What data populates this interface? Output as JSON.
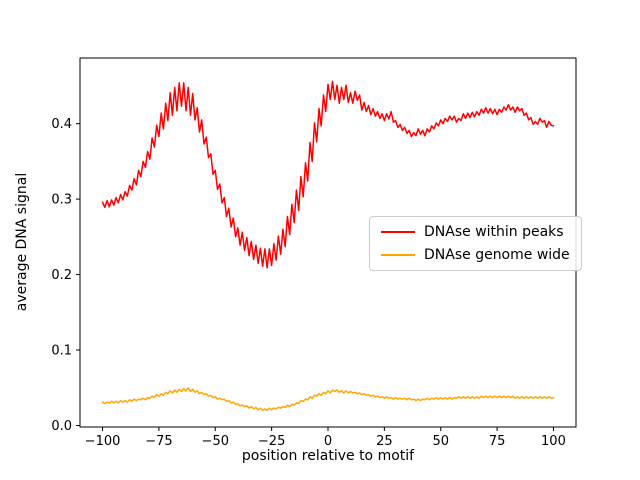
{
  "chart_data": {
    "type": "line",
    "title": "",
    "xlabel": "position relative to motif",
    "ylabel": "average DNA signal",
    "xlim": [
      -110,
      110
    ],
    "ylim": [
      -0.002,
      0.487
    ],
    "grid": false,
    "background": "#ffffff",
    "axes_color": "#000000",
    "legend": {
      "position": "center right",
      "border_color": "#cccccc",
      "background": "#ffffff"
    },
    "x_ticks": {
      "values": [
        -100,
        -75,
        -50,
        -25,
        0,
        25,
        50,
        75,
        100
      ],
      "labels": [
        "−100",
        "−75",
        "−50",
        "−25",
        "0",
        "25",
        "50",
        "75",
        "100"
      ]
    },
    "y_ticks": {
      "values": [
        0.0,
        0.1,
        0.2,
        0.3,
        0.4
      ],
      "labels": [
        "0.0",
        "0.1",
        "0.2",
        "0.3",
        "0.4"
      ]
    },
    "x": [
      -100,
      -99,
      -98,
      -97,
      -96,
      -95,
      -94,
      -93,
      -92,
      -91,
      -90,
      -89,
      -88,
      -87,
      -86,
      -85,
      -84,
      -83,
      -82,
      -81,
      -80,
      -79,
      -78,
      -77,
      -76,
      -75,
      -74,
      -73,
      -72,
      -71,
      -70,
      -69,
      -68,
      -67,
      -66,
      -65,
      -64,
      -63,
      -62,
      -61,
      -60,
      -59,
      -58,
      -57,
      -56,
      -55,
      -54,
      -53,
      -52,
      -51,
      -50,
      -49,
      -48,
      -47,
      -46,
      -45,
      -44,
      -43,
      -42,
      -41,
      -40,
      -39,
      -38,
      -37,
      -36,
      -35,
      -34,
      -33,
      -32,
      -31,
      -30,
      -29,
      -28,
      -27,
      -26,
      -25,
      -24,
      -23,
      -22,
      -21,
      -20,
      -19,
      -18,
      -17,
      -16,
      -15,
      -14,
      -13,
      -12,
      -11,
      -10,
      -9,
      -8,
      -7,
      -6,
      -5,
      -4,
      -3,
      -2,
      -1,
      0,
      1,
      2,
      3,
      4,
      5,
      6,
      7,
      8,
      9,
      10,
      11,
      12,
      13,
      14,
      15,
      16,
      17,
      18,
      19,
      20,
      21,
      22,
      23,
      24,
      25,
      26,
      27,
      28,
      29,
      30,
      31,
      32,
      33,
      34,
      35,
      36,
      37,
      38,
      39,
      40,
      41,
      42,
      43,
      44,
      45,
      46,
      47,
      48,
      49,
      50,
      51,
      52,
      53,
      54,
      55,
      56,
      57,
      58,
      59,
      60,
      61,
      62,
      63,
      64,
      65,
      66,
      67,
      68,
      69,
      70,
      71,
      72,
      73,
      74,
      75,
      76,
      77,
      78,
      79,
      80,
      81,
      82,
      83,
      84,
      85,
      86,
      87,
      88,
      89,
      90,
      91,
      92,
      93,
      94,
      95,
      96,
      97,
      98,
      99,
      100
    ],
    "series": [
      {
        "name": "DNAse within peaks",
        "color": "#ff0000",
        "linewidth": 1.5,
        "y": [
          0.296,
          0.289,
          0.298,
          0.29,
          0.299,
          0.292,
          0.302,
          0.295,
          0.306,
          0.299,
          0.31,
          0.304,
          0.318,
          0.312,
          0.327,
          0.319,
          0.338,
          0.33,
          0.35,
          0.342,
          0.363,
          0.353,
          0.381,
          0.369,
          0.398,
          0.383,
          0.414,
          0.393,
          0.427,
          0.404,
          0.441,
          0.411,
          0.448,
          0.417,
          0.454,
          0.423,
          0.454,
          0.417,
          0.448,
          0.411,
          0.44,
          0.405,
          0.421,
          0.389,
          0.405,
          0.373,
          0.382,
          0.355,
          0.36,
          0.333,
          0.338,
          0.313,
          0.32,
          0.295,
          0.302,
          0.277,
          0.288,
          0.263,
          0.275,
          0.25,
          0.262,
          0.239,
          0.256,
          0.232,
          0.249,
          0.225,
          0.244,
          0.22,
          0.239,
          0.215,
          0.235,
          0.211,
          0.234,
          0.209,
          0.234,
          0.212,
          0.241,
          0.219,
          0.251,
          0.227,
          0.26,
          0.237,
          0.277,
          0.253,
          0.293,
          0.269,
          0.312,
          0.285,
          0.33,
          0.303,
          0.348,
          0.324,
          0.375,
          0.35,
          0.401,
          0.376,
          0.42,
          0.397,
          0.438,
          0.416,
          0.452,
          0.432,
          0.456,
          0.432,
          0.451,
          0.427,
          0.448,
          0.432,
          0.451,
          0.428,
          0.441,
          0.427,
          0.443,
          0.431,
          0.438,
          0.418,
          0.428,
          0.416,
          0.424,
          0.412,
          0.42,
          0.41,
          0.416,
          0.407,
          0.413,
          0.404,
          0.413,
          0.406,
          0.416,
          0.402,
          0.404,
          0.395,
          0.399,
          0.391,
          0.395,
          0.387,
          0.391,
          0.383,
          0.388,
          0.384,
          0.393,
          0.386,
          0.391,
          0.384,
          0.393,
          0.389,
          0.397,
          0.393,
          0.401,
          0.397,
          0.405,
          0.4,
          0.407,
          0.403,
          0.41,
          0.405,
          0.41,
          0.402,
          0.407,
          0.404,
          0.413,
          0.407,
          0.414,
          0.408,
          0.415,
          0.409,
          0.416,
          0.411,
          0.419,
          0.414,
          0.421,
          0.414,
          0.42,
          0.413,
          0.419,
          0.412,
          0.419,
          0.415,
          0.422,
          0.418,
          0.425,
          0.418,
          0.422,
          0.415,
          0.422,
          0.417,
          0.42,
          0.411,
          0.414,
          0.405,
          0.408,
          0.399,
          0.403,
          0.399,
          0.407,
          0.402,
          0.404,
          0.395,
          0.403,
          0.398,
          0.397
        ]
      },
      {
        "name": "DNAse genome wide",
        "color": "#ffa500",
        "linewidth": 1.5,
        "y": [
          0.031,
          0.029,
          0.031,
          0.03,
          0.032,
          0.03,
          0.032,
          0.03,
          0.033,
          0.031,
          0.033,
          0.031,
          0.034,
          0.032,
          0.035,
          0.033,
          0.035,
          0.034,
          0.036,
          0.034,
          0.037,
          0.036,
          0.039,
          0.037,
          0.041,
          0.039,
          0.042,
          0.04,
          0.044,
          0.042,
          0.046,
          0.043,
          0.047,
          0.044,
          0.048,
          0.045,
          0.049,
          0.046,
          0.05,
          0.045,
          0.048,
          0.044,
          0.046,
          0.042,
          0.044,
          0.041,
          0.042,
          0.039,
          0.04,
          0.037,
          0.038,
          0.035,
          0.036,
          0.034,
          0.035,
          0.032,
          0.033,
          0.03,
          0.031,
          0.028,
          0.029,
          0.026,
          0.027,
          0.025,
          0.026,
          0.023,
          0.025,
          0.022,
          0.024,
          0.021,
          0.023,
          0.02,
          0.022,
          0.02,
          0.023,
          0.021,
          0.023,
          0.022,
          0.024,
          0.023,
          0.025,
          0.024,
          0.027,
          0.025,
          0.028,
          0.027,
          0.03,
          0.029,
          0.033,
          0.032,
          0.035,
          0.034,
          0.038,
          0.036,
          0.04,
          0.039,
          0.042,
          0.04,
          0.044,
          0.042,
          0.046,
          0.043,
          0.047,
          0.045,
          0.047,
          0.044,
          0.046,
          0.043,
          0.046,
          0.043,
          0.045,
          0.043,
          0.044,
          0.042,
          0.043,
          0.041,
          0.042,
          0.04,
          0.041,
          0.039,
          0.04,
          0.038,
          0.039,
          0.037,
          0.038,
          0.036,
          0.038,
          0.036,
          0.037,
          0.035,
          0.037,
          0.035,
          0.036,
          0.035,
          0.036,
          0.034,
          0.036,
          0.034,
          0.035,
          0.033,
          0.035,
          0.033,
          0.035,
          0.034,
          0.036,
          0.034,
          0.036,
          0.035,
          0.037,
          0.035,
          0.037,
          0.035,
          0.037,
          0.035,
          0.037,
          0.035,
          0.037,
          0.036,
          0.038,
          0.036,
          0.038,
          0.036,
          0.038,
          0.036,
          0.038,
          0.036,
          0.038,
          0.036,
          0.039,
          0.037,
          0.039,
          0.037,
          0.039,
          0.037,
          0.039,
          0.037,
          0.039,
          0.037,
          0.039,
          0.037,
          0.039,
          0.037,
          0.039,
          0.036,
          0.038,
          0.036,
          0.038,
          0.036,
          0.038,
          0.036,
          0.038,
          0.036,
          0.038,
          0.036,
          0.038,
          0.036,
          0.038,
          0.036,
          0.038,
          0.036,
          0.037
        ]
      }
    ]
  }
}
